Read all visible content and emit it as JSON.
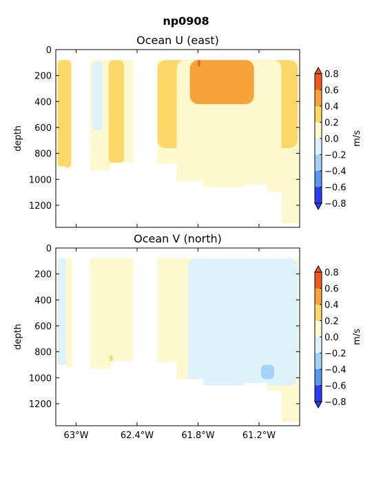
{
  "figure": {
    "title": "np0908"
  },
  "chart_data": [
    {
      "type": "heatmap",
      "title": "Ocean U (east)",
      "ylabel": "depth",
      "xlabel": "",
      "xlim": [
        -63.2,
        -60.8
      ],
      "ylim": [
        1370,
        0
      ],
      "xticks": [
        {
          "value": -63.0,
          "label": "63°W"
        },
        {
          "value": -62.4,
          "label": "62.4°W"
        },
        {
          "value": -61.8,
          "label": "61.8°W"
        },
        {
          "value": -61.2,
          "label": "61.2°W"
        }
      ],
      "yticks": [
        0,
        200,
        400,
        600,
        800,
        1000,
        1200
      ],
      "data_extent": {
        "top_depth": 80,
        "columns": [
          {
            "x": [
              -63.19,
              -63.1
            ],
            "bottom": 900
          },
          {
            "x": [
              -63.1,
              -63.04
            ],
            "bottom": 920
          },
          {
            "x": [
              -62.86,
              -62.66
            ],
            "bottom": 930
          },
          {
            "x": [
              -62.66,
              -62.44
            ],
            "bottom": 870
          },
          {
            "x": [
              -62.2,
              -62.01
            ],
            "bottom": 880
          },
          {
            "x": [
              -62.01,
              -61.75
            ],
            "bottom": 1010
          },
          {
            "x": [
              -61.75,
              -61.35
            ],
            "bottom": 1060
          },
          {
            "x": [
              -61.35,
              -61.12
            ],
            "bottom": 1040
          },
          {
            "x": [
              -61.12,
              -60.98
            ],
            "bottom": 1100
          },
          {
            "x": [
              -60.98,
              -60.81
            ],
            "bottom": 1340
          }
        ]
      },
      "regions": [
        {
          "level": "0.0 to 0.2",
          "x": [
            -62.7,
            -62.5
          ],
          "depth": [
            80,
            880
          ]
        },
        {
          "level": "0.2 to 0.4",
          "x": [
            -62.68,
            -62.53
          ],
          "depth": [
            80,
            880
          ]
        },
        {
          "level": "0.2 to 0.4",
          "x": [
            -63.18,
            -63.05
          ],
          "depth": [
            80,
            910
          ]
        },
        {
          "level": "-0.2 to 0.0",
          "x": [
            -62.84,
            -62.74
          ],
          "depth": [
            90,
            620
          ]
        },
        {
          "level": "0.2 to 0.4",
          "x": [
            -62.2,
            -60.82
          ],
          "depth": [
            80,
            760
          ]
        },
        {
          "level": "0.0 to 0.2",
          "x": [
            -62.01,
            -60.98
          ],
          "depth": [
            80,
            1060
          ]
        },
        {
          "level": "0.4 to 0.6",
          "x": [
            -61.88,
            -61.25
          ],
          "depth": [
            80,
            420
          ]
        },
        {
          "level": "0.6 to 0.8",
          "x": [
            -61.8,
            -61.78
          ],
          "depth": [
            80,
            130
          ]
        }
      ],
      "colorbar": {
        "label": "m/s",
        "ticks": [
          "0.8",
          "0.6",
          "0.4",
          "0.2",
          "0.0",
          "−0.2",
          "−0.4",
          "−0.6",
          "−0.8"
        ],
        "levels": [
          {
            "range": "0.6 to 0.8",
            "color": "#f05a1c"
          },
          {
            "range": "0.4 to 0.6",
            "color": "#f8a33a"
          },
          {
            "range": "0.2 to 0.4",
            "color": "#fdd868"
          },
          {
            "range": "0.0 to 0.2",
            "color": "#fef8ce"
          },
          {
            "range": "-0.2 to 0.0",
            "color": "#def2fc"
          },
          {
            "range": "-0.4 to -0.2",
            "color": "#a5d3f8"
          },
          {
            "range": "-0.6 to -0.4",
            "color": "#5a96f0"
          },
          {
            "range": "-0.8 to -0.6",
            "color": "#2e3cf0"
          }
        ]
      }
    },
    {
      "type": "heatmap",
      "title": "Ocean V (north)",
      "ylabel": "depth",
      "xlabel": "",
      "xlim": [
        -63.2,
        -60.8
      ],
      "ylim": [
        1370,
        0
      ],
      "xticks": [
        {
          "value": -63.0,
          "label": "63°W"
        },
        {
          "value": -62.4,
          "label": "62.4°W"
        },
        {
          "value": -61.8,
          "label": "61.8°W"
        },
        {
          "value": -61.2,
          "label": "61.2°W"
        }
      ],
      "yticks": [
        0,
        200,
        400,
        600,
        800,
        1000,
        1200
      ],
      "data_extent": {
        "top_depth": 80,
        "columns": [
          {
            "x": [
              -63.19,
              -63.1
            ],
            "bottom": 900
          },
          {
            "x": [
              -63.1,
              -63.04
            ],
            "bottom": 920
          },
          {
            "x": [
              -62.86,
              -62.66
            ],
            "bottom": 930
          },
          {
            "x": [
              -62.66,
              -62.44
            ],
            "bottom": 870
          },
          {
            "x": [
              -62.2,
              -62.01
            ],
            "bottom": 880
          },
          {
            "x": [
              -62.01,
              -61.75
            ],
            "bottom": 1010
          },
          {
            "x": [
              -61.75,
              -61.35
            ],
            "bottom": 1060
          },
          {
            "x": [
              -61.35,
              -61.12
            ],
            "bottom": 1040
          },
          {
            "x": [
              -61.12,
              -60.98
            ],
            "bottom": 1100
          },
          {
            "x": [
              -60.98,
              -60.81
            ],
            "bottom": 1340
          }
        ]
      },
      "regions": [
        {
          "level": "-0.2 to 0.0",
          "x": [
            -61.9,
            -60.82
          ],
          "depth": [
            80,
            1060
          ]
        },
        {
          "level": "-0.2 to 0.0",
          "x": [
            -63.18,
            -63.1
          ],
          "depth": [
            80,
            900
          ]
        },
        {
          "level": "-0.4 to -0.2",
          "x": [
            -61.18,
            -61.05
          ],
          "depth": [
            900,
            1010
          ]
        },
        {
          "level": "0.2 to 0.4",
          "x": [
            -62.67,
            -62.64
          ],
          "depth": [
            830,
            880
          ]
        }
      ],
      "colorbar": {
        "label": "m/s",
        "ticks": [
          "0.8",
          "0.6",
          "0.4",
          "0.2",
          "0.0",
          "−0.2",
          "−0.4",
          "−0.6",
          "−0.8"
        ],
        "levels": [
          {
            "range": "0.6 to 0.8",
            "color": "#f05a1c"
          },
          {
            "range": "0.4 to 0.6",
            "color": "#f8a33a"
          },
          {
            "range": "0.2 to 0.4",
            "color": "#fdd868"
          },
          {
            "range": "0.0 to 0.2",
            "color": "#fef8ce"
          },
          {
            "range": "-0.2 to 0.0",
            "color": "#def2fc"
          },
          {
            "range": "-0.4 to -0.2",
            "color": "#a5d3f8"
          },
          {
            "range": "-0.6 to -0.4",
            "color": "#5a96f0"
          },
          {
            "range": "-0.8 to -0.6",
            "color": "#2e3cf0"
          }
        ]
      }
    }
  ]
}
